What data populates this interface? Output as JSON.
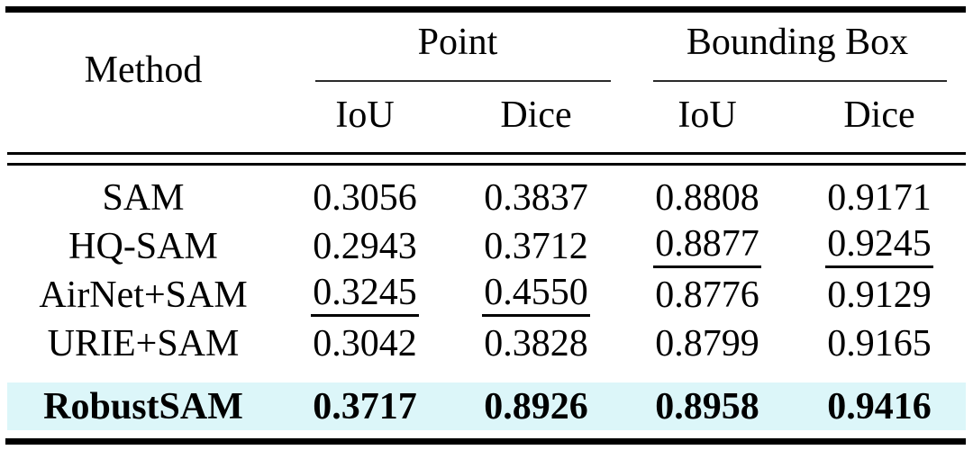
{
  "figure": {
    "header": {
      "method": "Method",
      "groups": [
        {
          "label": "Point",
          "sub": [
            "IoU",
            "Dice"
          ]
        },
        {
          "label": "Bounding Box",
          "sub": [
            "IoU",
            "Dice"
          ]
        }
      ]
    },
    "rows": [
      {
        "method": "SAM",
        "values": [
          "0.3056",
          "0.3837",
          "0.8808",
          "0.9171"
        ]
      },
      {
        "method": "HQ-SAM",
        "values": [
          "0.2943",
          "0.3712",
          "0.8877",
          "0.9245"
        ]
      },
      {
        "method": "AirNet+SAM",
        "values": [
          "0.3245",
          "0.4550",
          "0.8776",
          "0.9129"
        ]
      },
      {
        "method": "URIE+SAM",
        "values": [
          "0.3042",
          "0.3828",
          "0.8799",
          "0.9165"
        ]
      },
      {
        "method": "RobustSAM",
        "values": [
          "0.3717",
          "0.8926",
          "0.8958",
          "0.9416"
        ]
      }
    ],
    "emphasis": {
      "bold_best_row": "RobustSAM",
      "underlined_second_best": [
        {
          "method": "HQ-SAM",
          "columns": [
            "Bounding Box IoU",
            "Bounding Box Dice"
          ]
        },
        {
          "method": "AirNet+SAM",
          "columns": [
            "Point IoU",
            "Point Dice"
          ]
        }
      ],
      "highlight_color": "#dcf6f9"
    }
  },
  "chart_data": {
    "type": "table",
    "columns": [
      "Method",
      "Point IoU",
      "Point Dice",
      "Bounding Box IoU",
      "Bounding Box Dice"
    ],
    "rows": [
      [
        "SAM",
        0.3056,
        0.3837,
        0.8808,
        0.9171
      ],
      [
        "HQ-SAM",
        0.2943,
        0.3712,
        0.8877,
        0.9245
      ],
      [
        "AirNet+SAM",
        0.3245,
        0.455,
        0.8776,
        0.9129
      ],
      [
        "URIE+SAM",
        0.3042,
        0.3828,
        0.8799,
        0.9165
      ],
      [
        "RobustSAM",
        0.3717,
        0.8926,
        0.8958,
        0.9416
      ]
    ]
  }
}
